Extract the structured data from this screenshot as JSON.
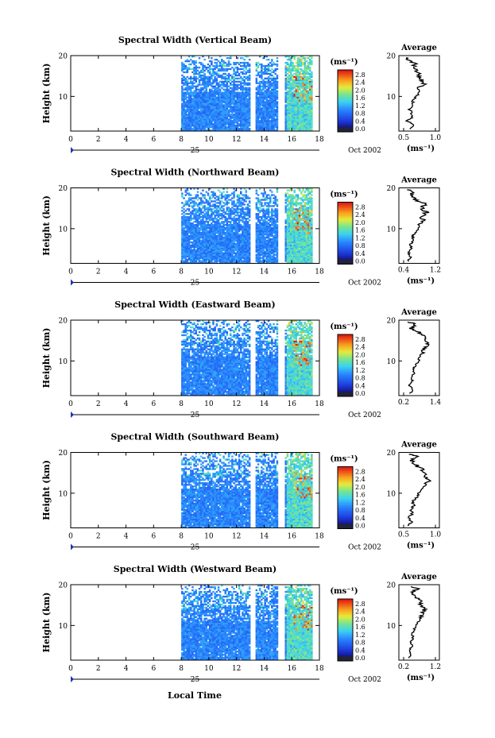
{
  "figure": {
    "xlabel": "Local Time",
    "date_label": "Oct 2002",
    "day_label": "25"
  },
  "chart_data": [
    {
      "type": "heatmap",
      "title": "Spectral Width (Vertical Beam)",
      "ylabel": "Height (km)",
      "xlim": [
        0,
        18
      ],
      "ylim": [
        1.5,
        20
      ],
      "x_ticks": [
        0,
        2,
        4,
        6,
        8,
        10,
        12,
        14,
        16,
        18
      ],
      "y_ticks": [
        10,
        20
      ],
      "data_x_start": 8,
      "data_gaps": [
        [
          12.9,
          13.3
        ],
        [
          15.0,
          15.5
        ]
      ],
      "colorbar": {
        "unit": "(ms⁻¹)",
        "ticks": [
          "0.0",
          "0.4",
          "0.8",
          "1.2",
          "1.6",
          "2.0",
          "2.4",
          "2.8"
        ]
      },
      "average": {
        "title": "Average",
        "xlabel": "(ms⁻¹)",
        "xlim": [
          0.3,
          1.2
        ],
        "x_ticks": [
          "0.5",
          "1.0"
        ],
        "y_ticks": [
          10,
          20
        ],
        "profile": [
          [
            0.55,
            2
          ],
          [
            0.62,
            3
          ],
          [
            0.48,
            4
          ],
          [
            0.6,
            5
          ],
          [
            0.58,
            6
          ],
          [
            0.53,
            7
          ],
          [
            0.63,
            8
          ],
          [
            0.6,
            9
          ],
          [
            0.68,
            10
          ],
          [
            0.76,
            11
          ],
          [
            0.7,
            12
          ],
          [
            0.88,
            13
          ],
          [
            0.8,
            14
          ],
          [
            0.75,
            15
          ],
          [
            0.72,
            16
          ],
          [
            0.66,
            17
          ],
          [
            0.65,
            18
          ],
          [
            0.5,
            19
          ],
          [
            0.45,
            19.6
          ]
        ]
      }
    },
    {
      "type": "heatmap",
      "title": "Spectral Width (Northward Beam)",
      "ylabel": "Height (km)",
      "xlim": [
        0,
        18
      ],
      "ylim": [
        1.5,
        20
      ],
      "x_ticks": [
        0,
        2,
        4,
        6,
        8,
        10,
        12,
        14,
        16,
        18
      ],
      "y_ticks": [
        10,
        20
      ],
      "data_x_start": 8,
      "data_gaps": [
        [
          12.9,
          13.3
        ],
        [
          15.0,
          15.5
        ]
      ],
      "colorbar": {
        "unit": "(ms⁻¹)",
        "ticks": [
          "0.0",
          "0.4",
          "0.8",
          "1.2",
          "1.6",
          "2.0",
          "2.4",
          "2.8"
        ]
      },
      "average": {
        "title": "Average",
        "xlabel": "(ms⁻¹)",
        "xlim": [
          0.3,
          1.2
        ],
        "x_ticks": [
          "0.4",
          "1.2"
        ],
        "y_ticks": [
          10,
          20
        ],
        "profile": [
          [
            0.5,
            2
          ],
          [
            0.55,
            3
          ],
          [
            0.52,
            4
          ],
          [
            0.58,
            5
          ],
          [
            0.55,
            6
          ],
          [
            0.62,
            7
          ],
          [
            0.6,
            8
          ],
          [
            0.66,
            9
          ],
          [
            0.72,
            10
          ],
          [
            0.75,
            11
          ],
          [
            0.85,
            12
          ],
          [
            0.8,
            13
          ],
          [
            0.92,
            14
          ],
          [
            0.82,
            15
          ],
          [
            0.88,
            16
          ],
          [
            0.7,
            17
          ],
          [
            0.55,
            18
          ],
          [
            0.62,
            19
          ],
          [
            0.48,
            19.7
          ]
        ]
      }
    },
    {
      "type": "heatmap",
      "title": "Spectral Width (Eastward Beam)",
      "ylabel": "Height (km)",
      "xlim": [
        0,
        18
      ],
      "ylim": [
        1.5,
        20
      ],
      "x_ticks": [
        0,
        2,
        4,
        6,
        8,
        10,
        12,
        14,
        16,
        18
      ],
      "y_ticks": [
        10,
        20
      ],
      "data_x_start": 8,
      "data_gaps": [
        [
          12.9,
          13.3
        ],
        [
          15.0,
          15.5
        ]
      ],
      "colorbar": {
        "unit": "(ms⁻¹)",
        "ticks": [
          "0.0",
          "0.4",
          "0.8",
          "1.2",
          "1.6",
          "2.0",
          "2.4",
          "2.8"
        ]
      },
      "average": {
        "title": "Average",
        "xlabel": "",
        "xlim": [
          0.2,
          1.4
        ],
        "x_ticks": [
          "0.2",
          "1.4"
        ],
        "y_ticks": [
          10,
          20
        ],
        "profile": [
          [
            0.55,
            2
          ],
          [
            0.6,
            3
          ],
          [
            0.52,
            4
          ],
          [
            0.6,
            5
          ],
          [
            0.58,
            6
          ],
          [
            0.66,
            7
          ],
          [
            0.62,
            8
          ],
          [
            0.7,
            9
          ],
          [
            0.78,
            10
          ],
          [
            0.82,
            11
          ],
          [
            0.9,
            12
          ],
          [
            0.95,
            13
          ],
          [
            1.05,
            14
          ],
          [
            0.98,
            15
          ],
          [
            1.0,
            16
          ],
          [
            0.8,
            17
          ],
          [
            0.55,
            18
          ],
          [
            0.7,
            19
          ],
          [
            0.45,
            19.7
          ]
        ]
      }
    },
    {
      "type": "heatmap",
      "title": "Spectral Width (Southward Beam)",
      "ylabel": "Height (km)",
      "xlim": [
        0,
        18
      ],
      "ylim": [
        1.5,
        20
      ],
      "x_ticks": [
        0,
        2,
        4,
        6,
        8,
        10,
        12,
        14,
        16,
        18
      ],
      "y_ticks": [
        10,
        20
      ],
      "data_x_start": 8,
      "data_gaps": [
        [
          12.9,
          13.3
        ],
        [
          15.0,
          15.5
        ]
      ],
      "colorbar": {
        "unit": "(ms⁻¹)",
        "ticks": [
          "0.0",
          "0.4",
          "0.8",
          "1.2",
          "1.6",
          "2.0",
          "2.4",
          "2.8"
        ]
      },
      "average": {
        "title": "Average",
        "xlabel": "(ms⁻¹)",
        "xlim": [
          0.3,
          1.2
        ],
        "x_ticks": [
          "0.5",
          "1.0"
        ],
        "y_ticks": [
          10,
          20
        ],
        "profile": [
          [
            0.52,
            2
          ],
          [
            0.58,
            3
          ],
          [
            0.5,
            4
          ],
          [
            0.6,
            5
          ],
          [
            0.56,
            6
          ],
          [
            0.64,
            7
          ],
          [
            0.6,
            8
          ],
          [
            0.7,
            9
          ],
          [
            0.74,
            10
          ],
          [
            0.8,
            11
          ],
          [
            0.88,
            12
          ],
          [
            0.96,
            13
          ],
          [
            0.9,
            14
          ],
          [
            0.85,
            15
          ],
          [
            0.8,
            16
          ],
          [
            0.66,
            17
          ],
          [
            0.58,
            18
          ],
          [
            0.72,
            19
          ],
          [
            0.5,
            19.7
          ]
        ]
      }
    },
    {
      "type": "heatmap",
      "title": "Spectral Width (Westward Beam)",
      "ylabel": "Height (km)",
      "xlim": [
        0,
        18
      ],
      "ylim": [
        1.5,
        20
      ],
      "x_ticks": [
        0,
        2,
        4,
        6,
        8,
        10,
        12,
        14,
        16,
        18
      ],
      "y_ticks": [
        10,
        20
      ],
      "data_x_start": 8,
      "data_gaps": [
        [
          12.9,
          13.3
        ],
        [
          15.0,
          15.5
        ]
      ],
      "colorbar": {
        "unit": "(ms⁻¹)",
        "ticks": [
          "0.0",
          "0.4",
          "0.8",
          "1.2",
          "1.6",
          "2.0",
          "2.4",
          "2.8"
        ]
      },
      "average": {
        "title": "Average",
        "xlabel": "(ms⁻¹)",
        "xlim": [
          0.2,
          1.2
        ],
        "x_ticks": [
          "0.2",
          "1.2"
        ],
        "y_ticks": [
          10,
          20
        ],
        "profile": [
          [
            0.45,
            2
          ],
          [
            0.5,
            3
          ],
          [
            0.46,
            4
          ],
          [
            0.52,
            5
          ],
          [
            0.5,
            6
          ],
          [
            0.55,
            7
          ],
          [
            0.53,
            8
          ],
          [
            0.58,
            9
          ],
          [
            0.62,
            10
          ],
          [
            0.68,
            11
          ],
          [
            0.75,
            12
          ],
          [
            0.8,
            13
          ],
          [
            0.82,
            14
          ],
          [
            0.72,
            15
          ],
          [
            0.8,
            16
          ],
          [
            0.62,
            17
          ],
          [
            0.5,
            18
          ],
          [
            0.66,
            19
          ],
          [
            0.42,
            19.7
          ]
        ]
      }
    }
  ]
}
